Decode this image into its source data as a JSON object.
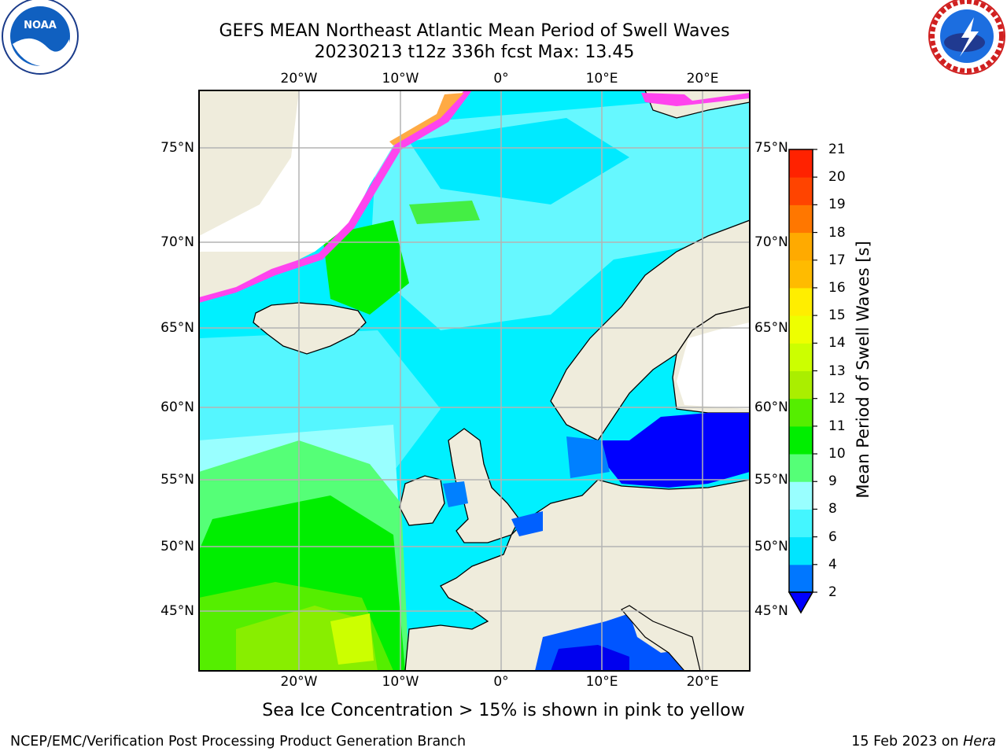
{
  "header": {
    "title_line1": "GEFS MEAN Northeast Atlantic Mean Period of Swell Waves",
    "title_line2": "20230213 t12z 336h fcst   Max: 13.45"
  },
  "logos": {
    "left": "noaa-logo",
    "right": "nws-logo",
    "left_text": "NOAA",
    "right_text": "NATIONAL WEATHER SERVICE"
  },
  "map": {
    "lon_labels": [
      "20°W",
      "10°W",
      "0°",
      "10°E",
      "20°E"
    ],
    "lat_labels": [
      "75°N",
      "70°N",
      "65°N",
      "60°N",
      "55°N",
      "50°N",
      "45°N"
    ],
    "ocean_color": "#00f0ff",
    "land_color": "#efecdc",
    "ice_colors": [
      "#ff44ee",
      "#ffaa44",
      "#ffee44"
    ]
  },
  "colorbar": {
    "title": "Mean Period of Swell Waves [s]",
    "ticks": [
      "2",
      "4",
      "6",
      "8",
      "9",
      "10",
      "11",
      "12",
      "13",
      "14",
      "15",
      "16",
      "17",
      "18",
      "19",
      "20",
      "21"
    ],
    "colors": [
      "#0055ff",
      "#0077ff",
      "#00e5ff",
      "#44f6ff",
      "#99ffff",
      "#55ff77",
      "#00ee00",
      "#55ee00",
      "#aaee00",
      "#ccff00",
      "#eeff00",
      "#ffee00",
      "#ffbb00",
      "#ffaa00",
      "#ff7700",
      "#ff4400",
      "#ff2200",
      "#ff0000"
    ],
    "extend_color": "#0000ff"
  },
  "note": "Sea Ice Concentration > 15% is shown in pink to yellow",
  "footer": {
    "left": "NCEP/EMC/Verification Post Processing Product Generation Branch",
    "date": "15 Feb 2023 on ",
    "host": "Hera"
  }
}
